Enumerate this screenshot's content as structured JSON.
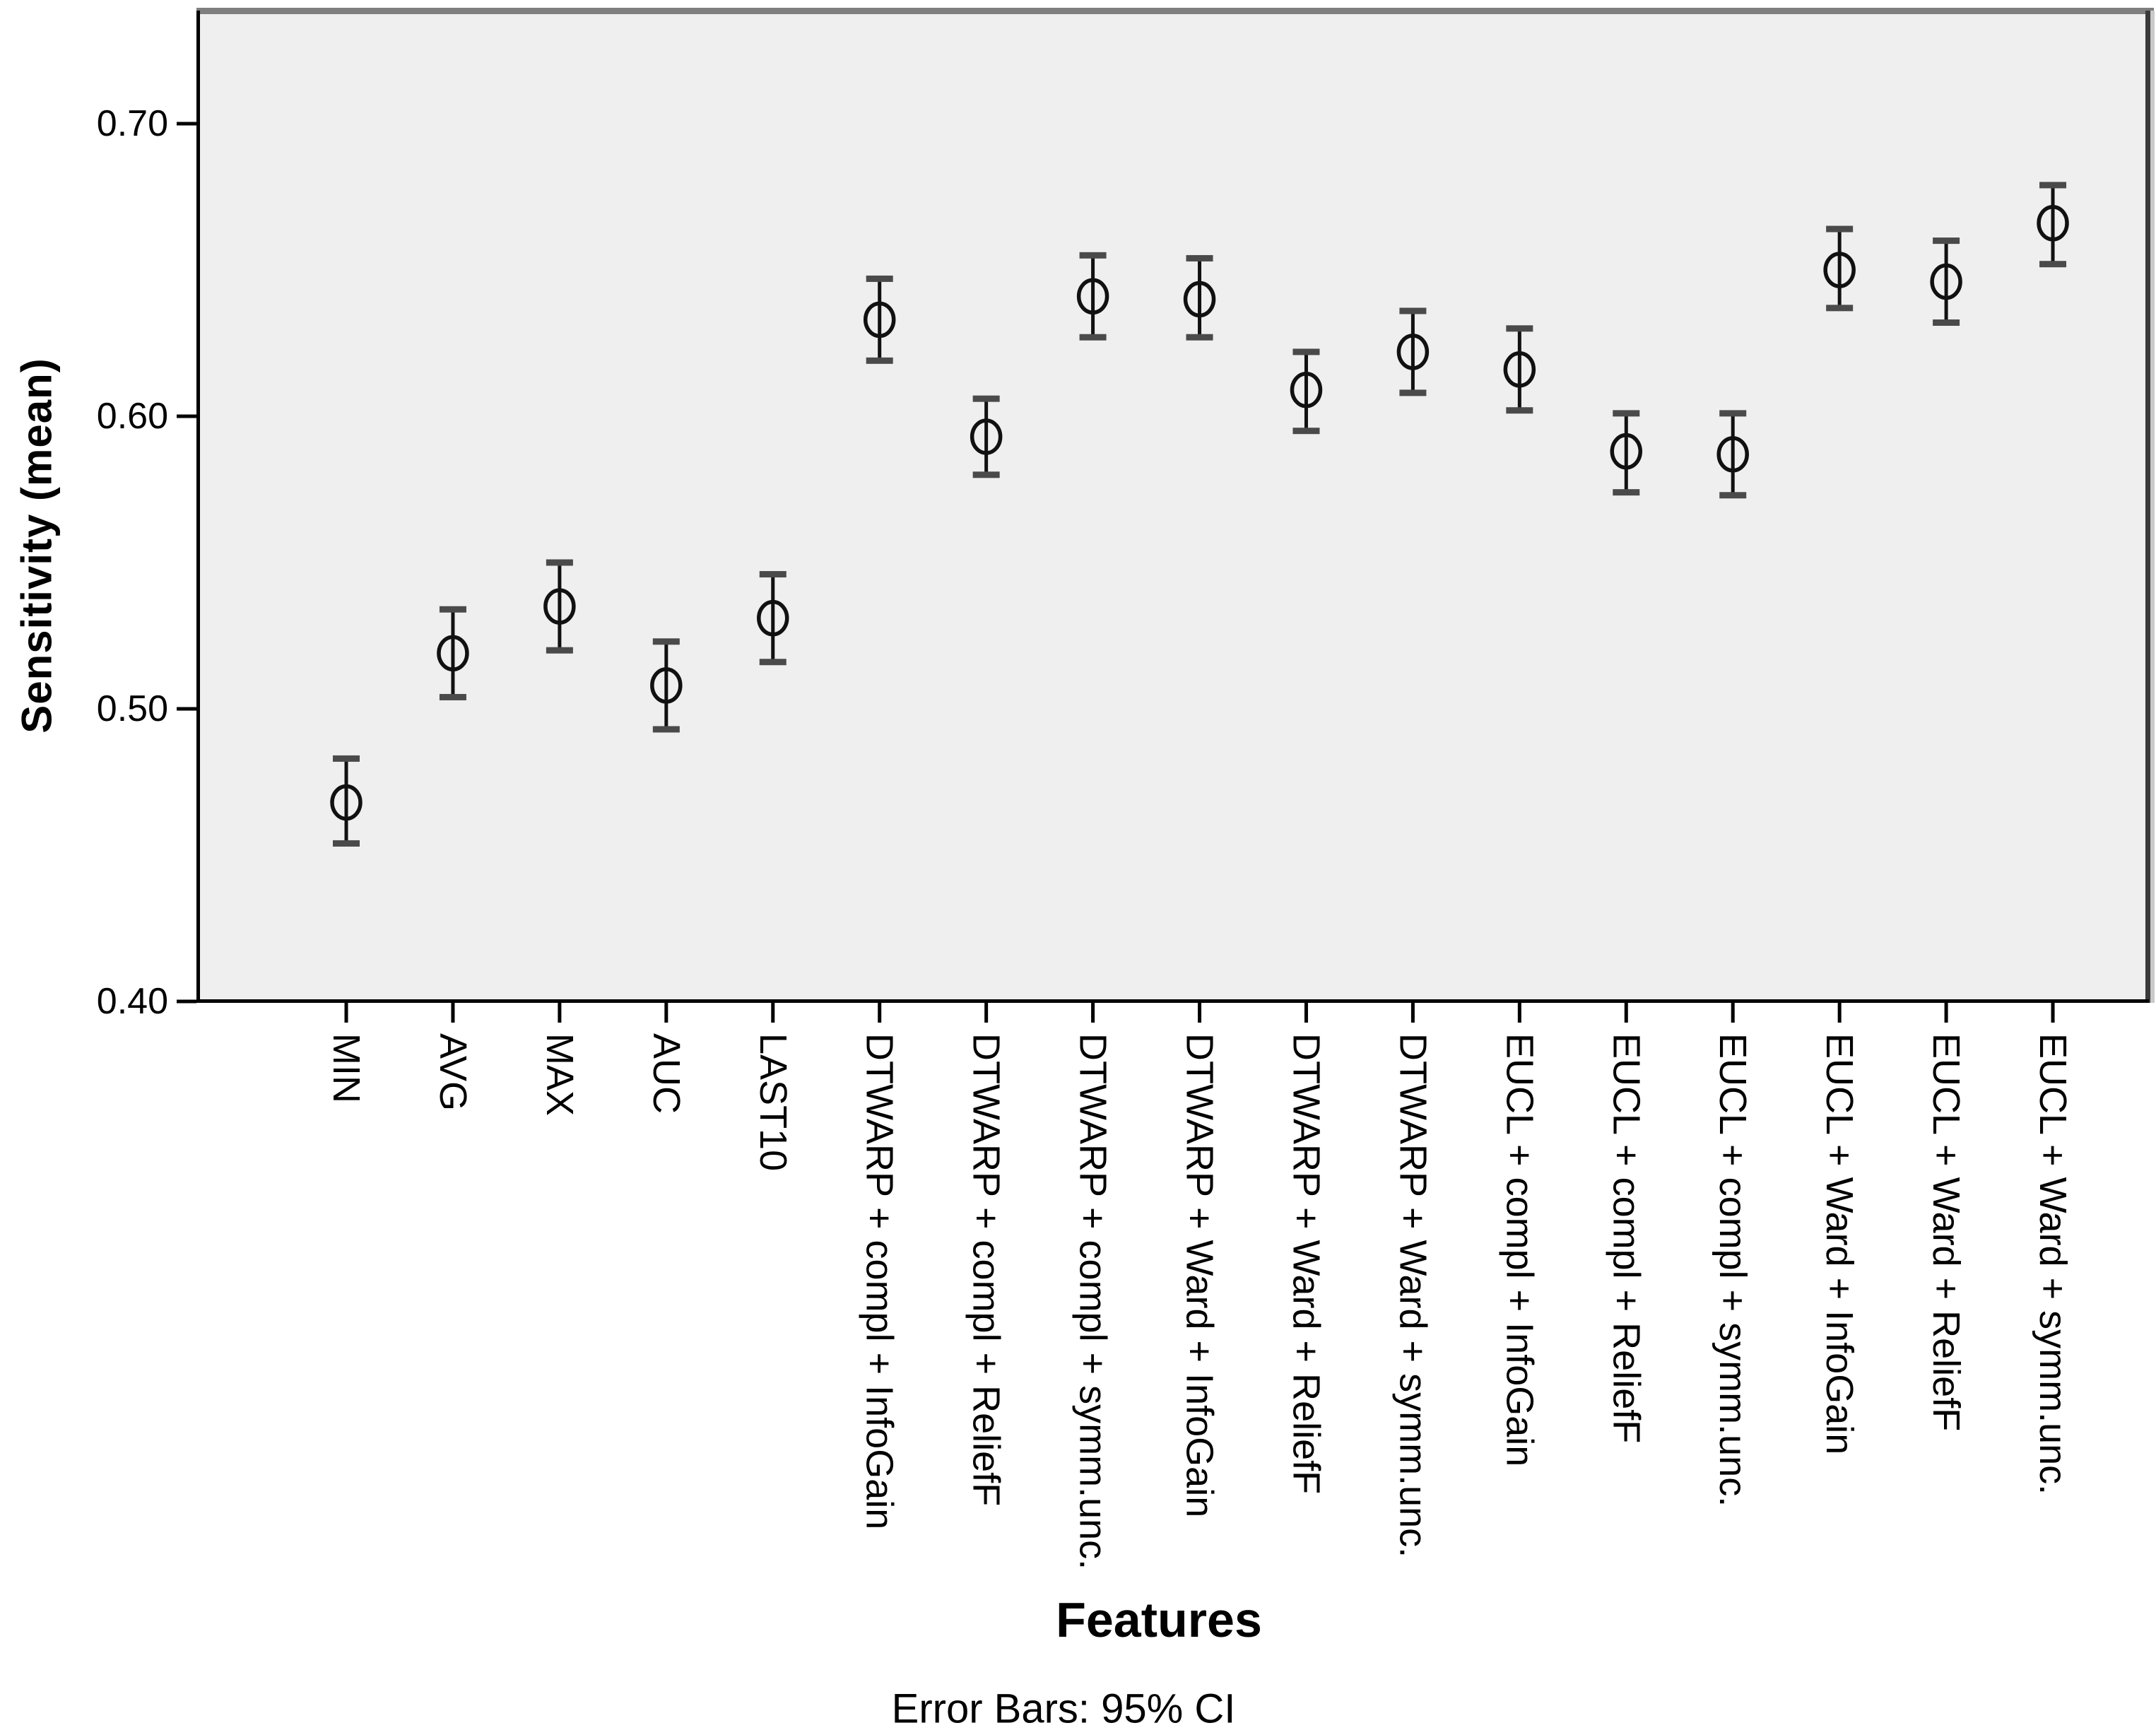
{
  "figure": {
    "background": "#ffffff",
    "plot_background": "#efefef",
    "top_border_color": "#7f7f7f",
    "right_border_color": "#3a3a3a",
    "right_border_outer_color": "#c9c9c9",
    "axis_color": "#000000",
    "marker_color": "#111111",
    "cap_color": "#4a4a4a",
    "text_color": "#000000",
    "footnote": "Error Bars: 95% CI"
  },
  "chart_data": {
    "type": "scatter",
    "subtype": "error-bar-plot",
    "title": "",
    "xlabel": "Features",
    "ylabel": "Sensitivity (mean)",
    "error_bars": "95% CI",
    "marker": "open-circle",
    "grid": false,
    "legend": "none",
    "ylim": [
      0.4,
      0.74
    ],
    "yticks": [
      0.4,
      0.5,
      0.6,
      0.7
    ],
    "ytick_labels": [
      "0.40",
      "0.50",
      "0.60",
      "0.70"
    ],
    "categories": [
      "MIN",
      "AVG",
      "MAX",
      "AUC",
      "LAST10",
      "DTWARP + compl + InfoGain",
      "DTWARP + compl + ReliefF",
      "DTWARP + compl + symm.unc.",
      "DTWARP + Ward + InfoGain",
      "DTWARP + Ward + ReliefF",
      "DTWARP + Ward + symm.unc.",
      "EUCL + compl + InfoGain",
      "EUCL + compl + ReliefF",
      "EUCL + compl + symm.unc.",
      "EUCL + Ward + InfoGain",
      "EUCL + Ward + ReliefF",
      "EUCL + Ward + symm.unc."
    ],
    "series": [
      {
        "name": "Sensitivity (mean)",
        "means": [
          0.468,
          0.519,
          0.535,
          0.508,
          0.531,
          0.633,
          0.593,
          0.641,
          0.64,
          0.609,
          0.622,
          0.616,
          0.588,
          0.587,
          0.65,
          0.646,
          0.666
        ],
        "ci_low": [
          0.454,
          0.504,
          0.52,
          0.493,
          0.516,
          0.619,
          0.58,
          0.627,
          0.627,
          0.595,
          0.608,
          0.602,
          0.574,
          0.573,
          0.637,
          0.632,
          0.652
        ],
        "ci_high": [
          0.483,
          0.534,
          0.55,
          0.523,
          0.546,
          0.647,
          0.606,
          0.655,
          0.654,
          0.622,
          0.636,
          0.63,
          0.601,
          0.601,
          0.664,
          0.66,
          0.679
        ]
      }
    ]
  }
}
